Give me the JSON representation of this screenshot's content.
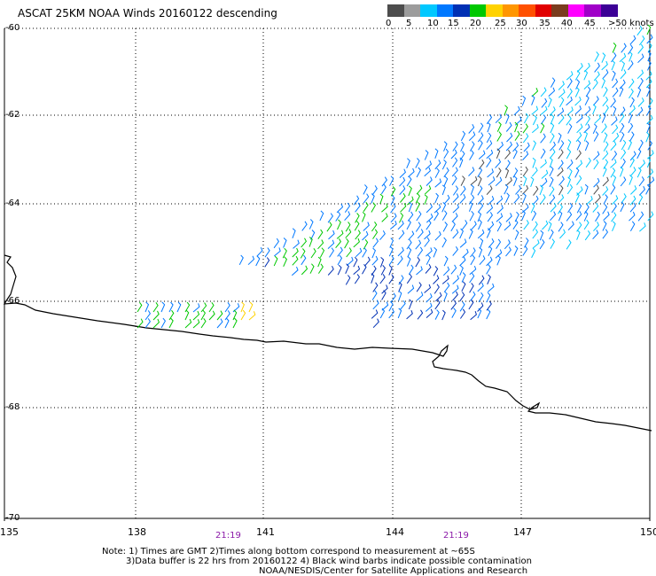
{
  "title": "ASCAT 25KM NOAA Winds 20160122 descending",
  "scale": {
    "colors": [
      "#4d4d4d",
      "#9c9c9c",
      "#00c8ff",
      "#0078ff",
      "#0030b4",
      "#00c800",
      "#ffd200",
      "#ff9600",
      "#ff5000",
      "#e10000",
      "#7a3c1e",
      "#ff00ff",
      "#a000c8",
      "#3c0096"
    ],
    "labels": [
      "0",
      "5",
      "10",
      "15",
      "20",
      "25",
      "30",
      "35",
      "40",
      "45",
      ">50 knots"
    ]
  },
  "lat_labels": [
    "-60",
    "-62",
    "-64",
    "-66",
    "-68",
    "-70"
  ],
  "lon_labels": [
    "135",
    "138",
    "141",
    "144",
    "147",
    "150"
  ],
  "time_labels": [
    "21:19",
    "21:19"
  ],
  "notes": [
    "Note: 1) Times are GMT 2)Times along bottom correspond to measurement at ~65S",
    "3)Data buffer is 22 hrs from 20160122 4) Black wind barbs indicate possible contamination",
    "NOAA/NESDIS/Center for Satellite Applications and Research"
  ]
}
